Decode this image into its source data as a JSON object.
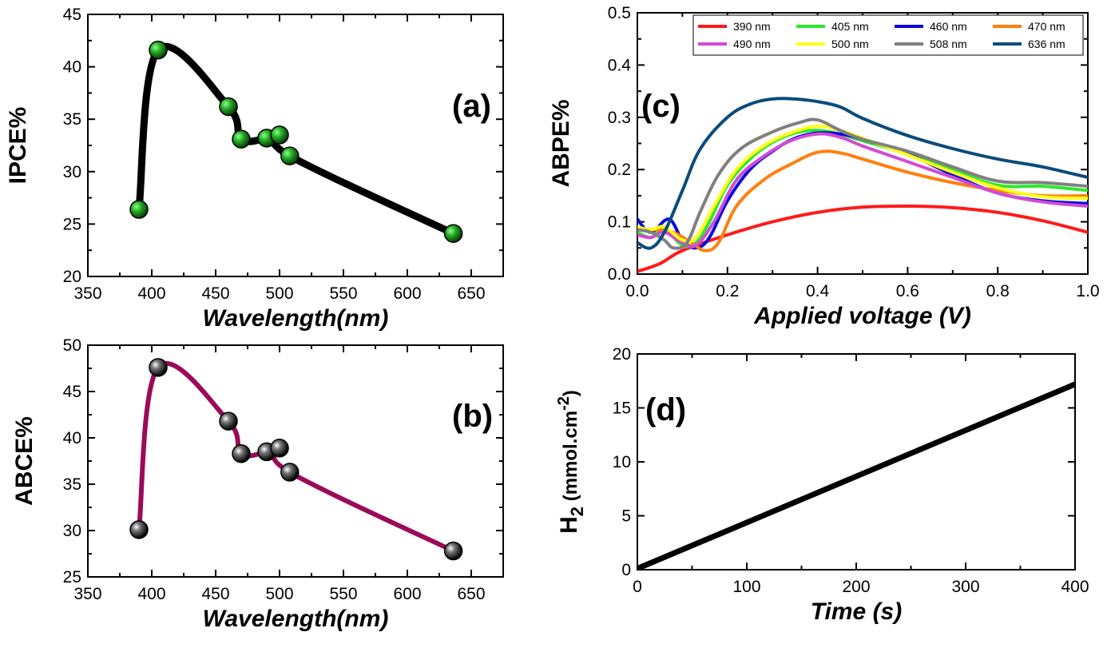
{
  "chart_data": [
    {
      "panel": "a",
      "panel_label": "(a)",
      "type": "line",
      "xlabel": "Wavelength(nm)",
      "ylabel": "IPCE%",
      "xlim": [
        350,
        675
      ],
      "ylim": [
        20,
        45
      ],
      "xticks": [
        "350",
        "400",
        "450",
        "500",
        "550",
        "600",
        "650"
      ],
      "yticks": [
        "20",
        "25",
        "30",
        "35",
        "40",
        "45"
      ],
      "line_color": "#000000",
      "marker_color": "#22aa22",
      "series": [
        {
          "x": [
            390,
            405,
            460,
            470,
            490,
            500,
            508,
            636
          ],
          "y": [
            26.4,
            41.6,
            36.2,
            33.1,
            33.2,
            33.5,
            31.5,
            24.1
          ]
        }
      ]
    },
    {
      "panel": "b",
      "panel_label": "(b)",
      "type": "line",
      "xlabel": "Wavelength(nm)",
      "ylabel": "ABCE%",
      "xlim": [
        350,
        675
      ],
      "ylim": [
        25,
        50
      ],
      "xticks": [
        "350",
        "400",
        "450",
        "500",
        "550",
        "600",
        "650"
      ],
      "yticks": [
        "25",
        "30",
        "35",
        "40",
        "45",
        "50"
      ],
      "line_color": "#9b0a5a",
      "marker_color": "#222222",
      "series": [
        {
          "x": [
            390,
            405,
            460,
            470,
            490,
            500,
            508,
            636
          ],
          "y": [
            30.1,
            47.6,
            41.8,
            38.3,
            38.5,
            38.9,
            36.3,
            27.8
          ]
        }
      ]
    },
    {
      "panel": "c",
      "panel_label": "(c)",
      "type": "line",
      "xlabel": "Applied voltage (V)",
      "ylabel": "ABPE%",
      "xlim": [
        0,
        1.0
      ],
      "ylim": [
        0,
        0.5
      ],
      "xticks": [
        "0.0",
        "0.2",
        "0.4",
        "0.6",
        "0.8",
        "1.0"
      ],
      "yticks": [
        "0.0",
        "0.1",
        "0.2",
        "0.3",
        "0.4",
        "0.5"
      ],
      "legend_position": "top-right",
      "series": [
        {
          "name": "390 nm",
          "color": "#ff1a1a",
          "x": [
            0,
            0.05,
            0.1,
            0.2,
            0.3,
            0.4,
            0.5,
            0.6,
            0.7,
            0.8,
            0.9,
            1.0
          ],
          "y": [
            0.005,
            0.02,
            0.045,
            0.075,
            0.1,
            0.118,
            0.128,
            0.13,
            0.127,
            0.118,
            0.102,
            0.08
          ]
        },
        {
          "name": "405 nm",
          "color": "#2ee82e",
          "x": [
            0,
            0.03,
            0.06,
            0.1,
            0.13,
            0.16,
            0.2,
            0.25,
            0.3,
            0.35,
            0.4,
            0.45,
            0.5,
            0.6,
            0.7,
            0.8,
            0.9,
            1.0
          ],
          "y": [
            0.08,
            0.07,
            0.085,
            0.055,
            0.06,
            0.1,
            0.17,
            0.22,
            0.252,
            0.27,
            0.275,
            0.268,
            0.255,
            0.23,
            0.2,
            0.17,
            0.168,
            0.16
          ]
        },
        {
          "name": "460 nm",
          "color": "#0a0adc",
          "x": [
            0,
            0.03,
            0.07,
            0.1,
            0.13,
            0.16,
            0.2,
            0.25,
            0.3,
            0.35,
            0.4,
            0.45,
            0.5,
            0.6,
            0.7,
            0.8,
            0.9,
            1.0
          ],
          "y": [
            0.105,
            0.08,
            0.105,
            0.065,
            0.05,
            0.07,
            0.14,
            0.2,
            0.235,
            0.26,
            0.27,
            0.268,
            0.258,
            0.23,
            0.19,
            0.155,
            0.14,
            0.135
          ]
        },
        {
          "name": "470 nm",
          "color": "#ff7f0e",
          "x": [
            0,
            0.04,
            0.08,
            0.12,
            0.15,
            0.18,
            0.22,
            0.28,
            0.34,
            0.4,
            0.45,
            0.5,
            0.6,
            0.7,
            0.8,
            0.9,
            1.0
          ],
          "y": [
            0.085,
            0.085,
            0.08,
            0.06,
            0.045,
            0.06,
            0.13,
            0.18,
            0.21,
            0.233,
            0.232,
            0.22,
            0.195,
            0.175,
            0.16,
            0.15,
            0.15
          ]
        },
        {
          "name": "490 nm",
          "color": "#d24bd2",
          "x": [
            0,
            0.03,
            0.06,
            0.1,
            0.13,
            0.17,
            0.22,
            0.28,
            0.34,
            0.4,
            0.45,
            0.5,
            0.6,
            0.7,
            0.8,
            0.9,
            1.0
          ],
          "y": [
            0.075,
            0.07,
            0.08,
            0.06,
            0.055,
            0.1,
            0.18,
            0.225,
            0.255,
            0.268,
            0.262,
            0.245,
            0.215,
            0.185,
            0.155,
            0.138,
            0.13
          ]
        },
        {
          "name": "500 nm",
          "color": "#ffff1a",
          "x": [
            0,
            0.03,
            0.06,
            0.1,
            0.13,
            0.17,
            0.22,
            0.28,
            0.34,
            0.4,
            0.45,
            0.5,
            0.6,
            0.7,
            0.8,
            0.9,
            1.0
          ],
          "y": [
            0.09,
            0.085,
            0.09,
            0.065,
            0.07,
            0.13,
            0.2,
            0.245,
            0.27,
            0.283,
            0.275,
            0.26,
            0.228,
            0.195,
            0.165,
            0.148,
            0.145
          ]
        },
        {
          "name": "508 nm",
          "color": "#808080",
          "x": [
            0,
            0.03,
            0.06,
            0.08,
            0.11,
            0.14,
            0.18,
            0.23,
            0.3,
            0.36,
            0.4,
            0.45,
            0.5,
            0.6,
            0.7,
            0.8,
            0.9,
            1.0
          ],
          "y": [
            0.085,
            0.08,
            0.065,
            0.05,
            0.06,
            0.12,
            0.19,
            0.24,
            0.272,
            0.29,
            0.295,
            0.275,
            0.258,
            0.235,
            0.205,
            0.178,
            0.175,
            0.168
          ]
        },
        {
          "name": "636 nm",
          "color": "#0b4c7a",
          "x": [
            0,
            0.03,
            0.06,
            0.1,
            0.14,
            0.2,
            0.25,
            0.3,
            0.35,
            0.4,
            0.45,
            0.5,
            0.6,
            0.7,
            0.8,
            0.9,
            1.0
          ],
          "y": [
            0.06,
            0.05,
            0.08,
            0.16,
            0.24,
            0.3,
            0.325,
            0.335,
            0.335,
            0.33,
            0.32,
            0.298,
            0.265,
            0.24,
            0.22,
            0.205,
            0.185
          ]
        }
      ]
    },
    {
      "panel": "d",
      "panel_label": "(d)",
      "type": "line",
      "xlabel": "Time (s)",
      "ylabel": "H2 (mmol.cm-2)",
      "ylabel_parts": {
        "main": "H",
        "sub": "2",
        "unit": " (mmol.cm",
        "sup": "-2",
        "close": ")"
      },
      "xlim": [
        0,
        400
      ],
      "ylim": [
        0,
        20
      ],
      "xticks": [
        "0",
        "100",
        "200",
        "300",
        "400"
      ],
      "yticks": [
        "0",
        "5",
        "10",
        "15",
        "20"
      ],
      "series": [
        {
          "color": "#000000",
          "x": [
            0,
            400
          ],
          "y": [
            0.1,
            17.2
          ]
        }
      ]
    }
  ]
}
